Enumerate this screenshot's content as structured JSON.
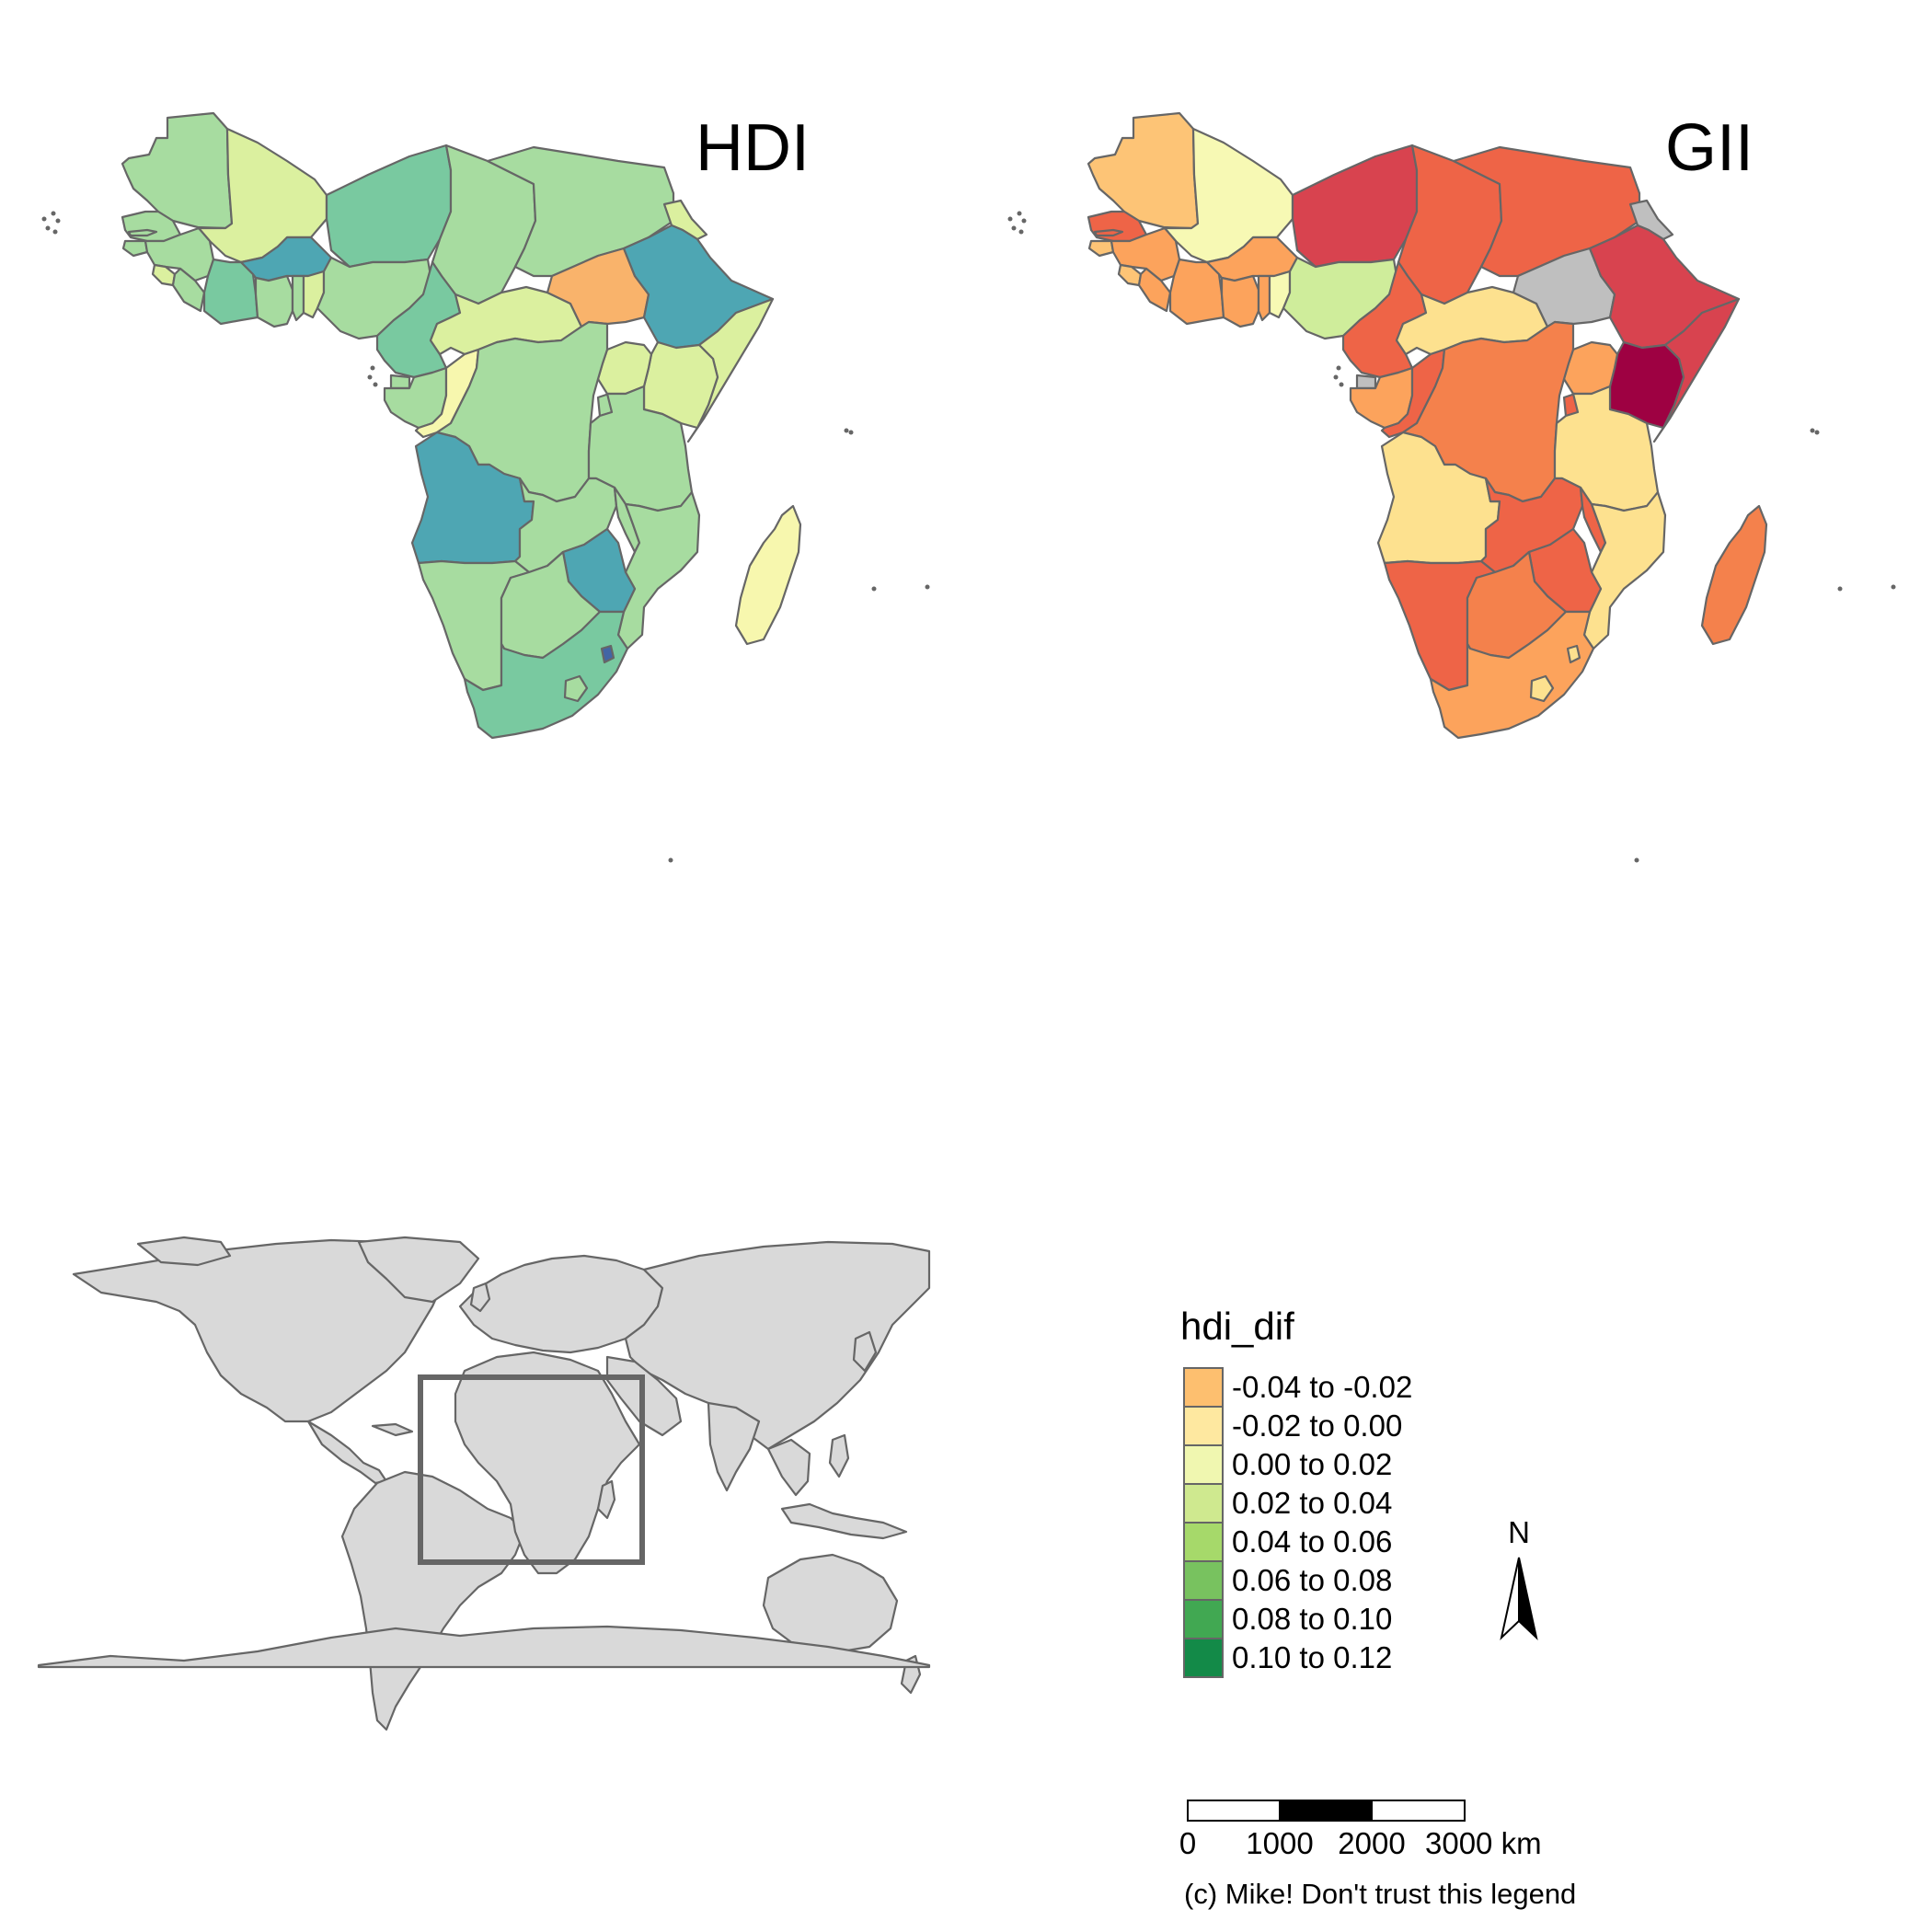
{
  "panels": [
    {
      "title": "HDI",
      "colors": {
        "mauritania": "#a7dca0",
        "mali": "#dbf09f",
        "niger": "#79c9a0",
        "chad": "#a7dca0",
        "sudan": "#a7dca0",
        "senegal": "#a7dca0",
        "gambia": "#a7dca0",
        "guinea_bissau": "#a7dca0",
        "guinea": "#a7dca0",
        "sierra_leone": "#dbf09f",
        "liberia": "#a7dca0",
        "ivory_coast": "#79c9a0",
        "burkina": "#4ea6b3",
        "ghana": "#a7dca0",
        "togo": "#a7dca0",
        "benin": "#dbf09f",
        "nigeria": "#a7dca0",
        "cameroon": "#79c9a0",
        "car": "#dbf09f",
        "south_sudan": "#f9b36b",
        "eritrea": "#dbf09f",
        "ethiopia": "#4ea6b3",
        "somalia": "#dbf09f",
        "kenya": "#dbf09f",
        "uganda": "#dbf09f",
        "eq_guinea": "#a7dca0",
        "gabon": "#a7dca0",
        "congo": "#f7f7ae",
        "drc": "#a7dca0",
        "rwanda": "#a7dca0",
        "tanzania": "#a7dca0",
        "angola": "#4ea6b3",
        "zambia": "#a7dca0",
        "malawi": "#a7dca0",
        "mozambique": "#a7dca0",
        "zimbabwe": "#4ea6b3",
        "namibia": "#a7dca0",
        "botswana": "#a7dca0",
        "south_africa": "#79c9a0",
        "lesotho": "#a7dca0",
        "swaziland": "#4265a5",
        "madagascar": "#f7f7ae"
      }
    },
    {
      "title": "GII",
      "colors": {
        "mauritania": "#fdc476",
        "mali": "#f7f9b4",
        "niger": "#d8434f",
        "chad": "#ee6447",
        "sudan": "#ee6447",
        "senegal": "#ee6447",
        "gambia": "#ee6447",
        "guinea_bissau": "#fdc476",
        "guinea": "#fca35c",
        "sierra_leone": "#fdc476",
        "liberia": "#fca35c",
        "ivory_coast": "#fca35c",
        "burkina": "#fca35c",
        "ghana": "#fca35c",
        "togo": "#fca35c",
        "benin": "#f7f9b4",
        "nigeria": "#cfed9b",
        "cameroon": "#ee6447",
        "car": "#fde18f",
        "south_sudan": "#bfbfbf",
        "eritrea": "#bfbfbf",
        "ethiopia": "#d8434f",
        "somalia": "#d8434f",
        "kenya": "#9e0142",
        "uganda": "#fca35c",
        "eq_guinea": "#bfbfbf",
        "gabon": "#fca35c",
        "congo": "#ee6447",
        "drc": "#f4814c",
        "rwanda": "#ee6447",
        "tanzania": "#fde18f",
        "angola": "#fde18f",
        "zambia": "#ee6447",
        "malawi": "#ee6447",
        "mozambique": "#fde18f",
        "zimbabwe": "#ee6447",
        "namibia": "#ee6447",
        "botswana": "#f4814c",
        "south_africa": "#fca35c",
        "lesotho": "#fde18f",
        "swaziland": "#fde18f",
        "madagascar": "#f4814c"
      }
    }
  ],
  "legend": {
    "title": "hdi_dif",
    "items": [
      {
        "label": "-0.04 to -0.02",
        "color": "#fdbf6f"
      },
      {
        "label": "-0.02 to 0.00",
        "color": "#fee8a0"
      },
      {
        "label": "0.00 to 0.02",
        "color": "#f0f7b0"
      },
      {
        "label": "0.02 to 0.04",
        "color": "#cfe98f"
      },
      {
        "label": "0.04 to 0.06",
        "color": "#a6d96a"
      },
      {
        "label": "0.06 to 0.08",
        "color": "#78c25f"
      },
      {
        "label": "0.08 to 0.10",
        "color": "#41a852"
      },
      {
        "label": "0.10 to 0.12",
        "color": "#138a48"
      }
    ]
  },
  "compass": {
    "label": "N"
  },
  "scalebar": {
    "ticks": [
      "0",
      "1000",
      "2000",
      "3000 km"
    ]
  },
  "credit": "(c) Mike! Don't trust this legend"
}
